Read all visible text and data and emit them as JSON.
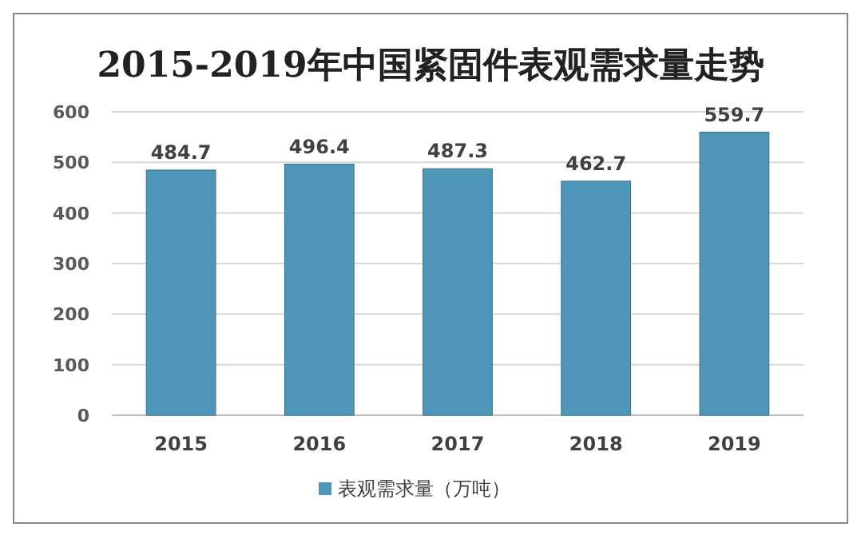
{
  "chart_data": {
    "type": "bar",
    "title": "2015-2019年中国紧固件表观需求量走势",
    "categories": [
      "2015",
      "2016",
      "2017",
      "2018",
      "2019"
    ],
    "series": [
      {
        "name": "表观需求量（万吨）",
        "color": "#4f97b8",
        "values": [
          484.7,
          496.4,
          487.3,
          462.7,
          559.7
        ]
      }
    ],
    "ylim": [
      0,
      600
    ],
    "yticks": [
      0,
      100,
      200,
      300,
      400,
      500,
      600
    ],
    "grid": "y",
    "legend": "bottom",
    "data_labels": true
  }
}
